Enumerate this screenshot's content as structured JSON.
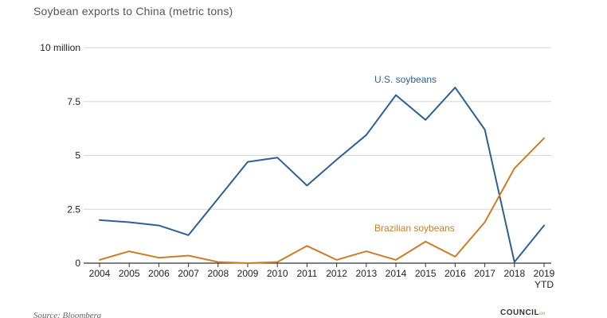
{
  "subtitle": "Soybean exports to China (metric tons)",
  "source": "Source: Bloomberg",
  "logo": {
    "main": "COUNCIL",
    "suffix": "on"
  },
  "colors": {
    "us": "#2e5f95",
    "brazil": "#d07a22",
    "grid": "#d6d6d6",
    "axis": "#333333"
  },
  "chart_data": {
    "type": "line",
    "x": [
      "2004",
      "2005",
      "2006",
      "2007",
      "2008",
      "2009",
      "2010",
      "2011",
      "2012",
      "2013",
      "2014",
      "2015",
      "2016",
      "2017",
      "2018",
      "2019\nYTD"
    ],
    "y_ticks": [
      {
        "value": 0,
        "label": "0"
      },
      {
        "value": 2.5,
        "label": "2.5"
      },
      {
        "value": 5,
        "label": "5"
      },
      {
        "value": 7.5,
        "label": "7.5"
      },
      {
        "value": 10,
        "label": "10 million"
      }
    ],
    "ylim": [
      0,
      10
    ],
    "grid": true,
    "series": [
      {
        "name": "U.S. soybeans",
        "color": "#2e5f95",
        "values": [
          2.0,
          1.9,
          1.75,
          1.3,
          3.0,
          4.7,
          4.9,
          3.6,
          4.8,
          5.95,
          7.8,
          6.65,
          8.15,
          6.2,
          0.05,
          1.75
        ]
      },
      {
        "name": "Brazilian soybeans",
        "color": "#d07a22",
        "values": [
          0.15,
          0.55,
          0.25,
          0.35,
          0.05,
          0.0,
          0.05,
          0.8,
          0.15,
          0.55,
          0.15,
          1.0,
          0.3,
          1.9,
          4.4,
          5.8
        ]
      }
    ]
  }
}
